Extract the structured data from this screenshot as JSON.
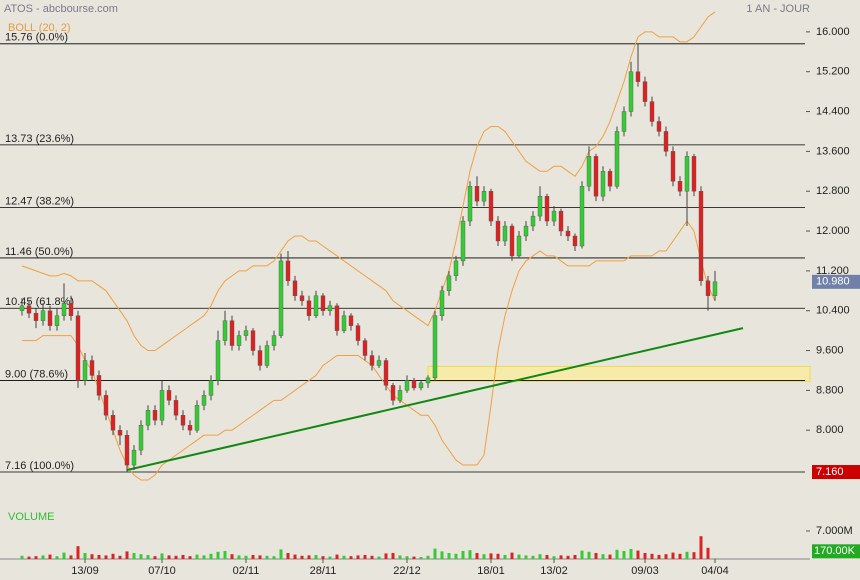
{
  "chart_data": {
    "type": "candlestick",
    "title": "ATOS - abcbourse.com",
    "period_label": "1 AN - JOUR",
    "indicator_label": "BOLL (20, 2)",
    "volume_label": "VOLUME",
    "categories": [
      null,
      null,
      null,
      null,
      null,
      null,
      null,
      null,
      null,
      "13/09",
      null,
      null,
      null,
      null,
      null,
      null,
      null,
      null,
      null,
      null,
      "07/10",
      null,
      null,
      null,
      null,
      null,
      null,
      null,
      null,
      null,
      null,
      null,
      "02/11",
      null,
      null,
      null,
      null,
      null,
      null,
      null,
      null,
      null,
      null,
      "28/11",
      null,
      null,
      null,
      null,
      null,
      null,
      null,
      null,
      null,
      null,
      null,
      "22/12",
      null,
      null,
      null,
      null,
      null,
      null,
      null,
      null,
      null,
      null,
      null,
      "18/01",
      null,
      null,
      null,
      null,
      null,
      null,
      null,
      null,
      "13/02",
      null,
      null,
      null,
      null,
      null,
      null,
      null,
      null,
      null,
      null,
      null,
      null,
      "09/03",
      null,
      null,
      null,
      null,
      null,
      null,
      null,
      null,
      null,
      "04/04"
    ],
    "candles": [
      [
        10.4,
        10.65,
        10.3,
        10.5
      ],
      [
        10.5,
        10.6,
        10.25,
        10.35
      ],
      [
        10.35,
        10.45,
        10.05,
        10.2
      ],
      [
        10.2,
        10.55,
        10.1,
        10.4
      ],
      [
        10.4,
        10.5,
        10.0,
        10.1
      ],
      [
        10.1,
        10.45,
        10.0,
        10.3
      ],
      [
        10.3,
        10.95,
        10.2,
        10.55
      ],
      [
        10.55,
        10.7,
        10.2,
        10.3
      ],
      [
        10.3,
        10.4,
        8.85,
        9.0
      ],
      [
        9.0,
        9.55,
        8.9,
        9.4
      ],
      [
        9.4,
        9.5,
        9.0,
        9.1
      ],
      [
        9.1,
        9.2,
        8.6,
        8.7
      ],
      [
        8.7,
        8.8,
        8.2,
        8.3
      ],
      [
        8.3,
        8.4,
        7.9,
        8.0
      ],
      [
        8.0,
        8.1,
        7.7,
        7.9
      ],
      [
        7.9,
        8.0,
        7.16,
        7.3
      ],
      [
        7.3,
        7.7,
        7.2,
        7.6
      ],
      [
        7.6,
        8.2,
        7.5,
        8.1
      ],
      [
        8.1,
        8.5,
        8.0,
        8.4
      ],
      [
        8.4,
        8.5,
        8.1,
        8.2
      ],
      [
        8.2,
        9.0,
        8.1,
        8.8
      ],
      [
        8.8,
        8.9,
        8.5,
        8.6
      ],
      [
        8.6,
        8.7,
        8.2,
        8.3
      ],
      [
        8.3,
        8.4,
        8.0,
        8.1
      ],
      [
        8.1,
        8.2,
        7.9,
        8.0
      ],
      [
        8.0,
        8.6,
        7.95,
        8.5
      ],
      [
        8.5,
        8.8,
        8.4,
        8.7
      ],
      [
        8.7,
        9.1,
        8.6,
        9.0
      ],
      [
        9.0,
        10.0,
        8.9,
        9.8
      ],
      [
        9.8,
        10.4,
        9.7,
        10.2
      ],
      [
        10.2,
        10.3,
        9.6,
        9.7
      ],
      [
        9.7,
        10.0,
        9.6,
        9.9
      ],
      [
        9.9,
        10.1,
        9.8,
        10.0
      ],
      [
        10.0,
        10.05,
        9.5,
        9.6
      ],
      [
        9.6,
        9.7,
        9.2,
        9.3
      ],
      [
        9.3,
        9.8,
        9.25,
        9.7
      ],
      [
        9.7,
        10.0,
        9.6,
        9.9
      ],
      [
        9.9,
        11.55,
        9.85,
        11.4
      ],
      [
        11.4,
        11.6,
        10.9,
        11.0
      ],
      [
        11.0,
        11.1,
        10.6,
        10.7
      ],
      [
        10.7,
        10.8,
        10.5,
        10.6
      ],
      [
        10.6,
        10.7,
        10.2,
        10.3
      ],
      [
        10.3,
        10.8,
        10.25,
        10.7
      ],
      [
        10.7,
        10.75,
        10.3,
        10.4
      ],
      [
        10.4,
        10.6,
        10.3,
        10.5
      ],
      [
        10.5,
        10.55,
        9.9,
        10.0
      ],
      [
        10.0,
        10.4,
        9.95,
        10.3
      ],
      [
        10.3,
        10.35,
        10.0,
        10.1
      ],
      [
        10.1,
        10.15,
        9.7,
        9.8
      ],
      [
        9.8,
        9.85,
        9.4,
        9.5
      ],
      [
        9.5,
        9.6,
        9.2,
        9.3
      ],
      [
        9.3,
        9.5,
        9.25,
        9.4
      ],
      [
        9.4,
        9.45,
        8.8,
        8.9
      ],
      [
        8.9,
        8.95,
        8.5,
        8.6
      ],
      [
        8.6,
        8.9,
        8.55,
        8.8
      ],
      [
        8.8,
        9.1,
        8.75,
        9.0
      ],
      [
        9.0,
        9.05,
        8.8,
        8.85
      ],
      [
        8.85,
        9.0,
        8.8,
        8.95
      ],
      [
        8.95,
        9.1,
        8.85,
        9.05
      ],
      [
        9.05,
        10.4,
        9.0,
        10.3
      ],
      [
        10.3,
        10.9,
        10.2,
        10.8
      ],
      [
        10.8,
        11.2,
        10.7,
        11.1
      ],
      [
        11.1,
        11.5,
        11.0,
        11.4
      ],
      [
        11.4,
        12.3,
        11.3,
        12.2
      ],
      [
        12.2,
        13.0,
        12.1,
        12.9
      ],
      [
        12.9,
        13.1,
        12.5,
        12.6
      ],
      [
        12.6,
        12.9,
        12.5,
        12.8
      ],
      [
        12.8,
        12.85,
        12.1,
        12.2
      ],
      [
        12.2,
        12.3,
        11.7,
        11.8
      ],
      [
        11.8,
        12.2,
        11.7,
        12.1
      ],
      [
        12.1,
        12.15,
        11.4,
        11.5
      ],
      [
        11.5,
        12.0,
        11.45,
        11.9
      ],
      [
        11.9,
        12.2,
        11.8,
        12.1
      ],
      [
        12.1,
        12.4,
        12.0,
        12.3
      ],
      [
        12.3,
        12.9,
        12.2,
        12.7
      ],
      [
        12.7,
        12.75,
        12.1,
        12.2
      ],
      [
        12.2,
        12.5,
        12.1,
        12.4
      ],
      [
        12.4,
        12.45,
        11.9,
        12.0
      ],
      [
        12.0,
        12.1,
        11.8,
        11.9
      ],
      [
        11.9,
        11.95,
        11.6,
        11.7
      ],
      [
        11.7,
        13.0,
        11.65,
        12.9
      ],
      [
        12.9,
        13.7,
        12.8,
        13.5
      ],
      [
        13.5,
        13.55,
        12.6,
        12.7
      ],
      [
        12.7,
        13.3,
        12.6,
        13.2
      ],
      [
        13.2,
        13.25,
        12.8,
        12.9
      ],
      [
        12.9,
        14.1,
        12.85,
        14.0
      ],
      [
        14.0,
        14.5,
        13.9,
        14.4
      ],
      [
        14.4,
        15.4,
        14.3,
        15.2
      ],
      [
        15.2,
        15.76,
        14.9,
        15.0
      ],
      [
        15.0,
        15.1,
        14.5,
        14.6
      ],
      [
        14.6,
        14.7,
        14.1,
        14.2
      ],
      [
        14.2,
        14.3,
        13.9,
        14.0
      ],
      [
        14.0,
        14.1,
        13.5,
        13.6
      ],
      [
        13.6,
        13.7,
        12.9,
        13.0
      ],
      [
        13.0,
        13.1,
        12.7,
        12.8
      ],
      [
        12.8,
        13.6,
        12.1,
        13.5
      ],
      [
        13.5,
        13.55,
        12.7,
        12.8
      ],
      [
        12.8,
        12.9,
        10.9,
        11.0
      ],
      [
        11.0,
        11.1,
        10.4,
        10.7
      ],
      [
        10.7,
        11.2,
        10.6,
        10.98
      ]
    ],
    "volumes": [
      800000,
      600000,
      700000,
      900000,
      1100000,
      700000,
      1600000,
      900000,
      3200000,
      1500000,
      1200000,
      1000000,
      900000,
      1300000,
      800000,
      1900000,
      1500000,
      1200000,
      1000000,
      700000,
      1400000,
      900000,
      800000,
      1000000,
      700000,
      1100000,
      900000,
      1300000,
      1800000,
      2000000,
      1200000,
      900000,
      800000,
      1000000,
      900000,
      800000,
      700000,
      2400000,
      1500000,
      1100000,
      800000,
      900000,
      1000000,
      700000,
      600000,
      1100000,
      800000,
      700000,
      900000,
      1000000,
      800000,
      600000,
      1400000,
      1500000,
      900000,
      700000,
      600000,
      500000,
      800000,
      2600000,
      1900000,
      1500000,
      1300000,
      2000000,
      2200000,
      1500000,
      1200000,
      1400000,
      1300000,
      1000000,
      1600000,
      1100000,
      900000,
      800000,
      1200000,
      1000000,
      700000,
      900000,
      800000,
      1000000,
      2100000,
      1800000,
      1500000,
      1200000,
      1100000,
      2300000,
      2000000,
      2500000,
      2100000,
      1500000,
      1300000,
      1000000,
      1200000,
      1600000,
      1300000,
      1800000,
      1700000,
      5700000,
      2800000,
      170000
    ],
    "bollinger_upper": [
      11.3,
      11.25,
      11.2,
      11.15,
      11.1,
      11.1,
      11.15,
      11.1,
      11.0,
      11.0,
      11.0,
      10.9,
      10.8,
      10.6,
      10.4,
      10.2,
      9.9,
      9.7,
      9.6,
      9.6,
      9.7,
      9.8,
      9.9,
      10.0,
      10.1,
      10.2,
      10.3,
      10.5,
      10.8,
      11.0,
      11.1,
      11.2,
      11.2,
      11.3,
      11.3,
      11.3,
      11.4,
      11.6,
      11.8,
      11.9,
      11.9,
      11.8,
      11.8,
      11.7,
      11.6,
      11.5,
      11.4,
      11.3,
      11.2,
      11.1,
      11.0,
      10.9,
      10.8,
      10.6,
      10.5,
      10.4,
      10.3,
      10.2,
      10.1,
      10.4,
      10.8,
      11.2,
      11.8,
      12.5,
      13.2,
      13.7,
      14.0,
      14.1,
      14.1,
      14.0,
      13.8,
      13.6,
      13.4,
      13.3,
      13.2,
      13.2,
      13.3,
      13.3,
      13.2,
      13.1,
      13.3,
      13.6,
      13.7,
      13.9,
      14.2,
      14.6,
      15.0,
      15.5,
      15.9,
      16.0,
      16.0,
      15.9,
      15.9,
      15.9,
      15.8,
      15.8,
      15.9,
      16.1,
      16.3,
      16.4
    ],
    "bollinger_lower": [
      9.8,
      9.8,
      9.8,
      9.9,
      9.9,
      9.9,
      9.9,
      9.9,
      9.7,
      9.4,
      9.2,
      8.8,
      8.4,
      8.0,
      7.6,
      7.3,
      7.1,
      7.0,
      7.0,
      7.1,
      7.3,
      7.4,
      7.5,
      7.6,
      7.7,
      7.8,
      7.9,
      7.9,
      7.9,
      8.0,
      8.0,
      8.1,
      8.2,
      8.3,
      8.4,
      8.5,
      8.6,
      8.6,
      8.7,
      8.8,
      8.9,
      9.0,
      9.1,
      9.3,
      9.4,
      9.5,
      9.5,
      9.5,
      9.5,
      9.4,
      9.3,
      9.1,
      8.9,
      8.7,
      8.6,
      8.5,
      8.4,
      8.3,
      8.3,
      8.1,
      7.8,
      7.6,
      7.4,
      7.3,
      7.3,
      7.3,
      7.5,
      8.5,
      9.6,
      10.3,
      10.8,
      11.2,
      11.4,
      11.5,
      11.6,
      11.5,
      11.5,
      11.4,
      11.3,
      11.3,
      11.3,
      11.3,
      11.4,
      11.4,
      11.4,
      11.4,
      11.4,
      11.5,
      11.5,
      11.5,
      11.5,
      11.6,
      11.6,
      11.8,
      12.0,
      12.2,
      12.0,
      11.4,
      10.9,
      10.6
    ],
    "fib_levels": [
      {
        "value": 15.76,
        "label": "15.76 (0.0%)"
      },
      {
        "value": 13.73,
        "label": "13.73 (23.6%)"
      },
      {
        "value": 12.47,
        "label": "12.47 (38.2%)"
      },
      {
        "value": 11.46,
        "label": "11.46 (50.0%)"
      },
      {
        "value": 10.45,
        "label": "10.45 (61.8%)"
      },
      {
        "value": 9.0,
        "label": "9.00 (78.6%)"
      },
      {
        "value": 7.16,
        "label": "7.16 (100.0%)"
      }
    ],
    "trendline": [
      [
        15,
        7.2
      ],
      [
        103,
        10.05
      ]
    ],
    "zone": {
      "from": 58,
      "ylim": [
        8.98,
        9.28
      ]
    },
    "ylim": [
      7.0,
      16.64
    ],
    "yticks": [
      {
        "value": 16,
        "label": "16.000"
      },
      {
        "value": 15.2,
        "label": "15.200"
      },
      {
        "value": 14.4,
        "label": "14.400"
      },
      {
        "value": 13.6,
        "label": "13.600"
      },
      {
        "value": 12.8,
        "label": "12.800"
      },
      {
        "value": 12,
        "label": "12.000"
      },
      {
        "value": 11.2,
        "label": "11.200"
      },
      {
        "value": 10.4,
        "label": "10.400"
      },
      {
        "value": 9.6,
        "label": "9.600"
      },
      {
        "value": 8.8,
        "label": "8.800"
      },
      {
        "value": 8,
        "label": "8.000"
      }
    ],
    "volume_ylim": [
      0,
      7000000
    ],
    "volume_yticks": [
      {
        "value": 7000000,
        "label": "7.000M"
      }
    ],
    "last_price": {
      "value": 10.98,
      "label": "10.980"
    },
    "low_price": {
      "value": 7.16,
      "label": "7.160"
    },
    "last_volume_label": "170.00K",
    "colors": {
      "up": "#33cc33",
      "down": "#dd2222",
      "band": "#f0a040",
      "trend": "#118811",
      "zone": "#ffee88",
      "fib": "#000000"
    }
  }
}
